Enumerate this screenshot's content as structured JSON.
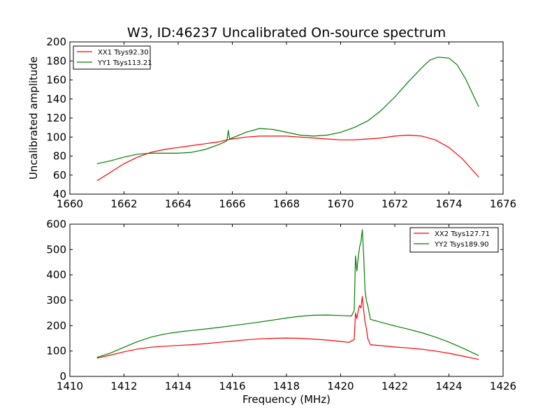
{
  "chart_data": [
    {
      "type": "line",
      "title": "W3, ID:46237 Uncalibrated On-source spectrum",
      "xlabel": "",
      "ylabel": "Uncalibrated amplitude",
      "xlim": [
        1660,
        1676
      ],
      "ylim": [
        40,
        200
      ],
      "xticks": [
        "1660",
        "1662",
        "1664",
        "1666",
        "1668",
        "1670",
        "1672",
        "1674",
        "1676"
      ],
      "yticks": [
        "40",
        "60",
        "80",
        "100",
        "120",
        "140",
        "160",
        "180",
        "200"
      ],
      "legend_position": "top-left",
      "series": [
        {
          "name": "XX1 Tsys92.30",
          "color": "#ff0000",
          "x": [
            1661.0,
            1661.5,
            1662.0,
            1662.5,
            1663.0,
            1663.5,
            1664.0,
            1664.5,
            1665.0,
            1665.5,
            1665.8,
            1666.0,
            1666.5,
            1667.0,
            1667.5,
            1668.0,
            1668.5,
            1669.0,
            1669.5,
            1670.0,
            1670.5,
            1671.0,
            1671.5,
            1672.0,
            1672.5,
            1673.0,
            1673.5,
            1674.0,
            1674.5,
            1675.1
          ],
          "y": [
            54,
            63,
            72,
            79,
            84,
            87,
            89,
            91,
            93,
            95,
            97,
            98,
            100,
            101,
            101,
            101,
            100,
            99,
            98,
            97,
            97,
            98,
            99,
            101,
            102,
            101,
            97,
            89,
            77,
            58
          ]
        },
        {
          "name": "YY1 Tsys113.21",
          "color": "#008000",
          "x": [
            1661.0,
            1661.5,
            1662.0,
            1662.5,
            1663.0,
            1663.5,
            1664.0,
            1664.5,
            1665.0,
            1665.5,
            1665.8,
            1665.85,
            1665.9,
            1666.0,
            1666.5,
            1667.0,
            1667.5,
            1668.0,
            1668.5,
            1669.0,
            1669.5,
            1670.0,
            1670.5,
            1671.0,
            1671.5,
            1672.0,
            1672.5,
            1673.0,
            1673.3,
            1673.6,
            1674.0,
            1674.3,
            1674.6,
            1675.1
          ],
          "y": [
            72,
            75,
            79,
            82,
            83,
            83,
            83,
            84,
            87,
            92,
            96,
            107,
            98,
            99,
            105,
            109,
            108,
            105,
            102,
            101,
            102,
            105,
            110,
            117,
            128,
            142,
            158,
            173,
            181,
            184,
            183,
            176,
            162,
            132
          ]
        }
      ]
    },
    {
      "type": "line",
      "title": "",
      "xlabel": "Frequency (MHz)",
      "ylabel": "",
      "xlim": [
        1410,
        1426
      ],
      "ylim": [
        0,
        600
      ],
      "xticks": [
        "1410",
        "1412",
        "1414",
        "1416",
        "1418",
        "1420",
        "1422",
        "1424",
        "1426"
      ],
      "yticks": [
        "0",
        "100",
        "200",
        "300",
        "400",
        "500",
        "600"
      ],
      "legend_position": "top-right",
      "series": [
        {
          "name": "XX2 Tsys127.71",
          "color": "#ff0000",
          "x": [
            1411.0,
            1411.5,
            1412.0,
            1412.5,
            1413.0,
            1413.5,
            1414.0,
            1414.5,
            1415.0,
            1415.5,
            1416.0,
            1416.5,
            1417.0,
            1417.5,
            1418.0,
            1418.5,
            1419.0,
            1419.5,
            1420.0,
            1420.3,
            1420.5,
            1420.55,
            1420.6,
            1420.65,
            1420.7,
            1420.75,
            1420.8,
            1420.85,
            1420.9,
            1420.95,
            1421.0,
            1421.1,
            1421.5,
            1422.0,
            1422.5,
            1423.0,
            1423.5,
            1424.0,
            1424.5,
            1425.1
          ],
          "y": [
            72,
            84,
            97,
            108,
            115,
            119,
            122,
            125,
            129,
            134,
            139,
            144,
            148,
            150,
            151,
            150,
            147,
            143,
            138,
            134,
            145,
            250,
            228,
            260,
            280,
            270,
            315,
            262,
            215,
            190,
            150,
            125,
            121,
            116,
            112,
            107,
            100,
            91,
            80,
            67
          ]
        },
        {
          "name": "YY2 Tsys189.90",
          "color": "#008000",
          "x": [
            1411.0,
            1411.5,
            1412.0,
            1412.5,
            1413.0,
            1413.5,
            1414.0,
            1414.5,
            1415.0,
            1415.5,
            1416.0,
            1416.5,
            1417.0,
            1417.5,
            1418.0,
            1418.5,
            1419.0,
            1419.5,
            1420.0,
            1420.4,
            1420.5,
            1420.55,
            1420.6,
            1420.65,
            1420.7,
            1420.75,
            1420.8,
            1420.85,
            1420.9,
            1420.95,
            1421.0,
            1421.1,
            1421.5,
            1422.0,
            1422.5,
            1423.0,
            1423.5,
            1424.0,
            1424.5,
            1425.1
          ],
          "y": [
            75,
            92,
            115,
            137,
            155,
            167,
            175,
            181,
            187,
            193,
            200,
            207,
            214,
            222,
            230,
            237,
            241,
            242,
            240,
            238,
            260,
            475,
            415,
            470,
            510,
            530,
            578,
            480,
            340,
            300,
            280,
            225,
            213,
            199,
            186,
            172,
            155,
            135,
            112,
            82
          ]
        }
      ]
    }
  ]
}
